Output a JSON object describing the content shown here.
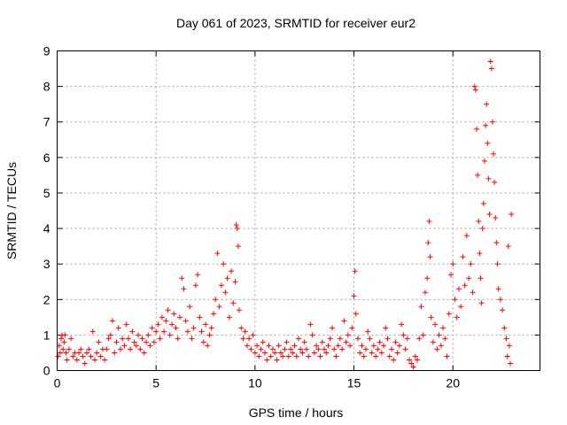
{
  "chart_data": {
    "type": "scatter",
    "title": "Day 061 of 2023, SRMTID for receiver eur2",
    "xlabel": "GPS time / hours",
    "ylabel": "SRMTID / TECUs",
    "xlim": [
      0,
      24.4
    ],
    "ylim": [
      0,
      9
    ],
    "x_ticks": [
      0,
      5,
      10,
      15,
      20
    ],
    "y_ticks": [
      0,
      1,
      2,
      3,
      4,
      5,
      6,
      7,
      8,
      9
    ],
    "x_tick_labels": [
      "0",
      "5",
      "10",
      "15",
      "20"
    ],
    "y_tick_labels": [
      "0",
      "1",
      "2",
      "3",
      "4",
      "5",
      "6",
      "7",
      "8",
      "9"
    ],
    "grid": true,
    "marker": "plus",
    "color": "#ff0000",
    "series": [
      {
        "name": "SRMTID",
        "points": [
          [
            0.05,
            0.4
          ],
          [
            0.1,
            0.7
          ],
          [
            0.15,
            0.5
          ],
          [
            0.2,
            0.9
          ],
          [
            0.25,
            1.0
          ],
          [
            0.3,
            0.6
          ],
          [
            0.35,
            0.8
          ],
          [
            0.4,
            1.0
          ],
          [
            0.45,
            0.5
          ],
          [
            0.5,
            0.3
          ],
          [
            0.6,
            0.6
          ],
          [
            0.7,
            0.9
          ],
          [
            0.8,
            0.4
          ],
          [
            0.9,
            0.5
          ],
          [
            1.0,
            0.3
          ],
          [
            1.1,
            0.5
          ],
          [
            1.2,
            0.6
          ],
          [
            1.3,
            0.4
          ],
          [
            1.4,
            0.2
          ],
          [
            1.5,
            0.5
          ],
          [
            1.6,
            0.6
          ],
          [
            1.7,
            0.4
          ],
          [
            1.8,
            1.1
          ],
          [
            1.9,
            0.3
          ],
          [
            2.0,
            0.5
          ],
          [
            2.1,
            0.8
          ],
          [
            2.2,
            0.4
          ],
          [
            2.3,
            0.6
          ],
          [
            2.4,
            0.3
          ],
          [
            2.5,
            0.6
          ],
          [
            2.6,
            0.9
          ],
          [
            2.7,
            1.0
          ],
          [
            2.8,
            1.4
          ],
          [
            2.9,
            0.5
          ],
          [
            3.0,
            0.8
          ],
          [
            3.1,
            1.2
          ],
          [
            3.2,
            0.6
          ],
          [
            3.3,
            0.9
          ],
          [
            3.4,
            0.7
          ],
          [
            3.5,
            1.3
          ],
          [
            3.6,
            0.9
          ],
          [
            3.7,
            0.6
          ],
          [
            3.8,
            1.1
          ],
          [
            3.9,
            0.8
          ],
          [
            4.0,
            0.7
          ],
          [
            4.1,
            1.0
          ],
          [
            4.2,
            0.6
          ],
          [
            4.3,
            0.9
          ],
          [
            4.4,
            0.5
          ],
          [
            4.5,
            0.8
          ],
          [
            4.6,
            1.0
          ],
          [
            4.7,
            0.7
          ],
          [
            4.8,
            1.2
          ],
          [
            4.9,
            0.8
          ],
          [
            5.0,
            1.1
          ],
          [
            5.1,
            1.3
          ],
          [
            5.2,
            0.9
          ],
          [
            5.3,
            1.5
          ],
          [
            5.4,
            1.1
          ],
          [
            5.5,
            1.4
          ],
          [
            5.6,
            1.7
          ],
          [
            5.7,
            1.0
          ],
          [
            5.8,
            1.3
          ],
          [
            5.9,
            1.6
          ],
          [
            6.0,
            1.2
          ],
          [
            6.1,
            0.9
          ],
          [
            6.2,
            1.5
          ],
          [
            6.3,
            2.6
          ],
          [
            6.4,
            2.3
          ],
          [
            6.5,
            1.4
          ],
          [
            6.6,
            1.1
          ],
          [
            6.7,
            1.8
          ],
          [
            6.8,
            0.9
          ],
          [
            6.9,
            1.2
          ],
          [
            7.0,
            2.4
          ],
          [
            7.1,
            2.7
          ],
          [
            7.2,
            1.5
          ],
          [
            7.3,
            1.1
          ],
          [
            7.4,
            0.8
          ],
          [
            7.5,
            1.3
          ],
          [
            7.6,
            0.7
          ],
          [
            7.7,
            1.0
          ],
          [
            7.8,
            1.2
          ],
          [
            7.9,
            1.6
          ],
          [
            8.0,
            2.0
          ],
          [
            8.1,
            3.3
          ],
          [
            8.2,
            1.8
          ],
          [
            8.3,
            2.4
          ],
          [
            8.4,
            3.0
          ],
          [
            8.5,
            2.2
          ],
          [
            8.6,
            2.6
          ],
          [
            8.7,
            1.5
          ],
          [
            8.8,
            2.8
          ],
          [
            8.9,
            1.9
          ],
          [
            9.0,
            2.5
          ],
          [
            9.05,
            4.1
          ],
          [
            9.1,
            4.0
          ],
          [
            9.15,
            3.5
          ],
          [
            9.2,
            1.7
          ],
          [
            9.3,
            1.2
          ],
          [
            9.4,
            0.9
          ],
          [
            9.5,
            1.1
          ],
          [
            9.6,
            0.7
          ],
          [
            9.7,
            0.9
          ],
          [
            9.8,
            0.6
          ],
          [
            9.9,
            1.0
          ],
          [
            10.0,
            0.5
          ],
          [
            10.1,
            0.7
          ],
          [
            10.2,
            0.4
          ],
          [
            10.3,
            0.6
          ],
          [
            10.4,
            0.8
          ],
          [
            10.5,
            0.5
          ],
          [
            10.6,
            0.3
          ],
          [
            10.7,
            0.7
          ],
          [
            10.8,
            0.4
          ],
          [
            10.9,
            0.6
          ],
          [
            11.0,
            0.5
          ],
          [
            11.1,
            0.3
          ],
          [
            11.2,
            0.7
          ],
          [
            11.3,
            0.5
          ],
          [
            11.4,
            0.4
          ],
          [
            11.5,
            0.6
          ],
          [
            11.6,
            0.8
          ],
          [
            11.7,
            0.4
          ],
          [
            11.8,
            0.6
          ],
          [
            11.9,
            0.5
          ],
          [
            12.0,
            0.7
          ],
          [
            12.1,
            0.4
          ],
          [
            12.2,
            0.9
          ],
          [
            12.3,
            0.6
          ],
          [
            12.4,
            0.5
          ],
          [
            12.5,
            0.8
          ],
          [
            12.6,
            0.6
          ],
          [
            12.7,
            0.4
          ],
          [
            12.8,
            1.3
          ],
          [
            12.9,
            1.0
          ],
          [
            13.0,
            0.5
          ],
          [
            13.1,
            0.7
          ],
          [
            13.2,
            0.6
          ],
          [
            13.3,
            0.4
          ],
          [
            13.4,
            0.8
          ],
          [
            13.5,
            0.6
          ],
          [
            13.6,
            0.5
          ],
          [
            13.7,
            0.7
          ],
          [
            13.8,
            0.9
          ],
          [
            13.9,
            1.2
          ],
          [
            14.0,
            0.6
          ],
          [
            14.1,
            0.4
          ],
          [
            14.2,
            0.7
          ],
          [
            14.3,
            0.9
          ],
          [
            14.4,
            0.6
          ],
          [
            14.5,
            1.4
          ],
          [
            14.6,
            0.8
          ],
          [
            14.7,
            1.0
          ],
          [
            14.8,
            0.7
          ],
          [
            14.9,
            1.2
          ],
          [
            15.0,
            2.1
          ],
          [
            15.05,
            2.8
          ],
          [
            15.1,
            1.6
          ],
          [
            15.2,
            0.9
          ],
          [
            15.3,
            0.5
          ],
          [
            15.4,
            0.7
          ],
          [
            15.5,
            0.4
          ],
          [
            15.6,
            0.6
          ],
          [
            15.7,
            1.1
          ],
          [
            15.8,
            0.9
          ],
          [
            15.9,
            0.5
          ],
          [
            16.0,
            0.7
          ],
          [
            16.1,
            0.4
          ],
          [
            16.2,
            0.6
          ],
          [
            16.3,
            0.8
          ],
          [
            16.4,
            0.5
          ],
          [
            16.5,
            0.7
          ],
          [
            16.6,
            1.2
          ],
          [
            16.7,
            0.9
          ],
          [
            16.8,
            0.4
          ],
          [
            16.9,
            0.6
          ],
          [
            17.0,
            0.3
          ],
          [
            17.1,
            0.8
          ],
          [
            17.2,
            0.5
          ],
          [
            17.3,
            0.7
          ],
          [
            17.4,
            1.3
          ],
          [
            17.5,
            1.0
          ],
          [
            17.6,
            0.6
          ],
          [
            17.7,
            0.9
          ],
          [
            17.8,
            0.3
          ],
          [
            17.9,
            0.2
          ],
          [
            18.0,
            0.1
          ],
          [
            18.1,
            0.4
          ],
          [
            18.2,
            0.3
          ],
          [
            18.3,
            0.9
          ],
          [
            18.4,
            1.8
          ],
          [
            18.5,
            1.0
          ],
          [
            18.6,
            2.2
          ],
          [
            18.7,
            2.6
          ],
          [
            18.75,
            3.6
          ],
          [
            18.8,
            4.2
          ],
          [
            18.85,
            3.2
          ],
          [
            18.9,
            1.5
          ],
          [
            19.0,
            0.8
          ],
          [
            19.1,
            1.3
          ],
          [
            19.2,
            0.6
          ],
          [
            19.3,
            1.0
          ],
          [
            19.4,
            0.7
          ],
          [
            19.5,
            1.2
          ],
          [
            19.6,
            0.9
          ],
          [
            19.7,
            0.4
          ],
          [
            19.8,
            1.6
          ],
          [
            19.9,
            2.7
          ],
          [
            20.0,
            3.0
          ],
          [
            20.1,
            2.0
          ],
          [
            20.2,
            1.5
          ],
          [
            20.3,
            2.3
          ],
          [
            20.4,
            1.8
          ],
          [
            20.5,
            3.2
          ],
          [
            20.6,
            2.4
          ],
          [
            20.7,
            3.8
          ],
          [
            20.8,
            2.6
          ],
          [
            20.9,
            3.0
          ],
          [
            21.0,
            2.2
          ],
          [
            21.1,
            8.0
          ],
          [
            21.15,
            7.9
          ],
          [
            21.2,
            6.8
          ],
          [
            21.25,
            5.5
          ],
          [
            21.3,
            4.2
          ],
          [
            21.35,
            3.3
          ],
          [
            21.4,
            2.6
          ],
          [
            21.45,
            1.9
          ],
          [
            21.5,
            4.0
          ],
          [
            21.55,
            4.7
          ],
          [
            21.6,
            5.9
          ],
          [
            21.65,
            6.9
          ],
          [
            21.7,
            7.5
          ],
          [
            21.75,
            6.4
          ],
          [
            21.8,
            5.4
          ],
          [
            21.85,
            4.4
          ],
          [
            21.9,
            8.7
          ],
          [
            21.95,
            8.5
          ],
          [
            22.0,
            7.0
          ],
          [
            22.05,
            6.1
          ],
          [
            22.1,
            5.3
          ],
          [
            22.15,
            4.3
          ],
          [
            22.2,
            3.6
          ],
          [
            22.25,
            3.0
          ],
          [
            22.3,
            2.3
          ],
          [
            22.4,
            2.0
          ],
          [
            22.5,
            1.7
          ],
          [
            22.6,
            1.2
          ],
          [
            22.7,
            0.9
          ],
          [
            22.75,
            0.4
          ],
          [
            22.8,
            3.5
          ],
          [
            22.85,
            0.7
          ],
          [
            22.9,
            0.2
          ],
          [
            22.95,
            4.4
          ]
        ]
      }
    ]
  }
}
